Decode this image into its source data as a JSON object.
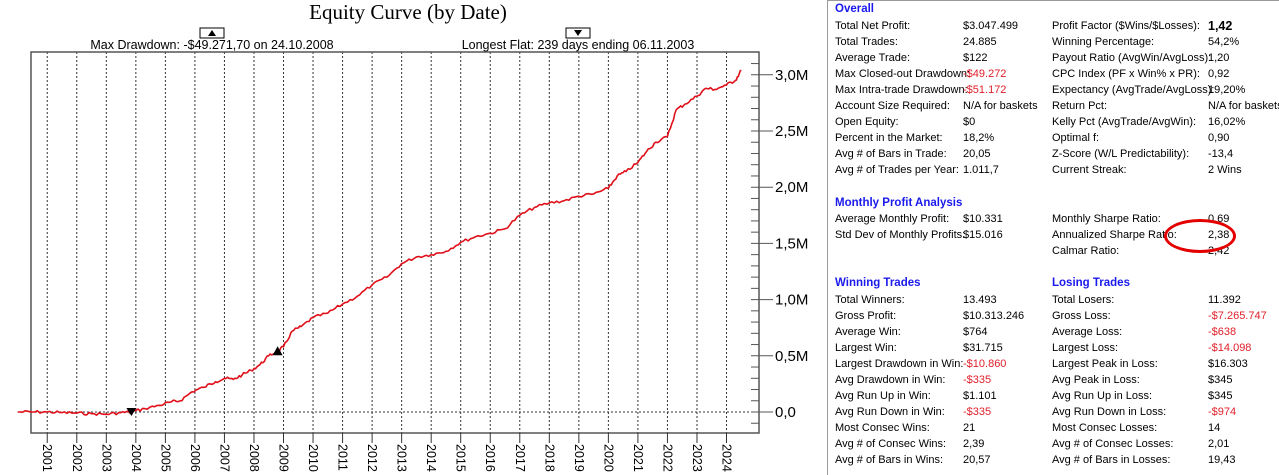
{
  "chart_data": {
    "type": "line",
    "title": "Equity Curve (by Date)",
    "max_drawdown_label": "Max Drawdown: -$49.271,70 on 24.10.2008",
    "longest_flat_label": "Longest Flat: 239 days ending 06.11.2003",
    "xlabel": "",
    "ylabel": "",
    "x_tick_labels": [
      "2001",
      "2002",
      "2003",
      "2004",
      "2005",
      "2006",
      "2007",
      "2008",
      "2009",
      "2010",
      "2011",
      "2012",
      "2013",
      "2014",
      "2015",
      "2016",
      "2017",
      "2018",
      "2019",
      "2020",
      "2021",
      "2022",
      "2023",
      "2024"
    ],
    "y_tick_labels": [
      "0,0",
      "0,5M",
      "1,0M",
      "1,5M",
      "2,0M",
      "2,5M",
      "3,0M"
    ],
    "y_tick_values": [
      0,
      500000,
      1000000,
      1500000,
      2000000,
      2500000,
      3000000
    ],
    "xlim": [
      2000.0,
      2025.0
    ],
    "ylim": [
      -200000,
      3200000
    ],
    "grid": "vertical-dotted",
    "series": [
      {
        "name": "Equity",
        "color": "#e0101a",
        "x": [
          2000.0,
          2000.5,
          2001.0,
          2001.5,
          2002.0,
          2002.5,
          2003.0,
          2003.5,
          2003.85,
          2004.3,
          2004.8,
          2005.2,
          2005.5,
          2005.9,
          2006.3,
          2006.7,
          2007.0,
          2007.3,
          2007.6,
          2007.9,
          2008.2,
          2008.5,
          2008.8,
          2009.0,
          2009.3,
          2009.6,
          2010.0,
          2010.5,
          2011.0,
          2011.5,
          2012.0,
          2012.5,
          2013.0,
          2013.5,
          2014.0,
          2014.5,
          2015.0,
          2015.5,
          2016.0,
          2016.5,
          2017.0,
          2017.5,
          2018.0,
          2018.5,
          2019.0,
          2019.5,
          2020.0,
          2020.3,
          2020.6,
          2021.0,
          2021.3,
          2021.6,
          2022.0,
          2022.3,
          2022.6,
          2023.0,
          2023.3,
          2023.6,
          2024.0,
          2024.3,
          2024.5
        ],
        "y": [
          0,
          0,
          0,
          -5000,
          -10000,
          -15000,
          -20000,
          -5000,
          0,
          30000,
          60000,
          90000,
          100000,
          180000,
          220000,
          270000,
          300000,
          290000,
          330000,
          370000,
          420000,
          500000,
          540000,
          580000,
          720000,
          760000,
          840000,
          880000,
          960000,
          1030000,
          1130000,
          1200000,
          1320000,
          1380000,
          1400000,
          1430000,
          1510000,
          1560000,
          1590000,
          1630000,
          1750000,
          1820000,
          1860000,
          1880000,
          1920000,
          1940000,
          1990000,
          2100000,
          2140000,
          2220000,
          2320000,
          2400000,
          2450000,
          2690000,
          2740000,
          2810000,
          2880000,
          2870000,
          2910000,
          2950000,
          3040000
        ]
      }
    ],
    "markers": [
      {
        "name": "longest-flat-end",
        "shape": "triangle-down",
        "x": 2003.85,
        "y": 0
      },
      {
        "name": "max-drawdown",
        "shape": "triangle-up",
        "x": 2008.8,
        "y": 540000
      }
    ]
  },
  "stats": {
    "overall": {
      "title": "Overall",
      "left": [
        {
          "label": "Total Net Profit:",
          "value": "$3.047.499",
          "neg": false
        },
        {
          "label": "Total Trades:",
          "value": "24.885",
          "neg": false
        },
        {
          "label": "Average Trade:",
          "value": "$122",
          "neg": false
        },
        {
          "label": "Max Closed-out Drawdown:",
          "value": "-$49.272",
          "neg": true
        },
        {
          "label": "Max Intra-trade Drawdown:",
          "value": "-$51.172",
          "neg": true
        },
        {
          "label": "Account Size Required:",
          "value": "N/A for baskets",
          "neg": false
        },
        {
          "label": "Open Equity:",
          "value": "$0",
          "neg": false
        },
        {
          "label": "Percent in the Market:",
          "value": "18,2%",
          "neg": false
        },
        {
          "label": "Avg # of Bars in Trade:",
          "value": "20,05",
          "neg": false
        },
        {
          "label": "Avg # of Trades per Year:",
          "value": "1.011,7",
          "neg": false
        }
      ],
      "right": [
        {
          "label": "Profit Factor ($Wins/$Losses):",
          "value": "1,42",
          "neg": false,
          "bold": true
        },
        {
          "label": "Winning Percentage:",
          "value": "54,2%",
          "neg": false
        },
        {
          "label": "Payout Ratio (AvgWin/AvgLoss):",
          "value": "1,20",
          "neg": false
        },
        {
          "label": "CPC Index (PF x Win% x PR):",
          "value": "0,92",
          "neg": false
        },
        {
          "label": "Expectancy (AvgTrade/AvgLoss):",
          "value": "19,20%",
          "neg": false
        },
        {
          "label": "Return Pct:",
          "value": "N/A for baskets",
          "neg": false
        },
        {
          "label": "Kelly Pct (AvgTrade/AvgWin):",
          "value": "16,02%",
          "neg": false
        },
        {
          "label": "Optimal f:",
          "value": "0,90",
          "neg": false
        },
        {
          "label": "Z-Score (W/L Predictability):",
          "value": "-13,4",
          "neg": false
        },
        {
          "label": "Current Streak:",
          "value": "2 Wins",
          "neg": false
        }
      ]
    },
    "monthly": {
      "title": "Monthly Profit Analysis",
      "left": [
        {
          "label": "Average Monthly Profit:",
          "value": "$10.331"
        },
        {
          "label": "Std Dev of Monthly Profits:",
          "value": "$15.016"
        }
      ],
      "right": [
        {
          "label": "Monthly Sharpe Ratio:",
          "value": "0,69"
        },
        {
          "label": "Annualized Sharpe Ratio:",
          "value": "2,38"
        },
        {
          "label": "Calmar Ratio:",
          "value": "2,42"
        }
      ]
    },
    "winning": {
      "title": "Winning Trades",
      "rows": [
        {
          "label": "Total Winners:",
          "value": "13.493",
          "neg": false
        },
        {
          "label": "Gross Profit:",
          "value": "$10.313.246",
          "neg": false
        },
        {
          "label": "Average Win:",
          "value": "$764",
          "neg": false
        },
        {
          "label": "Largest Win:",
          "value": "$31.715",
          "neg": false
        },
        {
          "label": "Largest Drawdown in Win:",
          "value": "-$10.860",
          "neg": true
        },
        {
          "label": "Avg Drawdown in Win:",
          "value": "-$335",
          "neg": true
        },
        {
          "label": "Avg Run Up in Win:",
          "value": "$1.101",
          "neg": false
        },
        {
          "label": "Avg Run Down in Win:",
          "value": "-$335",
          "neg": true
        },
        {
          "label": "Most Consec Wins:",
          "value": "21",
          "neg": false
        },
        {
          "label": "Avg # of Consec Wins:",
          "value": "2,39",
          "neg": false
        },
        {
          "label": "Avg # of Bars in Wins:",
          "value": "20,57",
          "neg": false
        }
      ]
    },
    "losing": {
      "title": "Losing Trades",
      "rows": [
        {
          "label": "Total Losers:",
          "value": "11.392",
          "neg": false
        },
        {
          "label": "Gross Loss:",
          "value": "-$7.265.747",
          "neg": true
        },
        {
          "label": "Average Loss:",
          "value": "-$638",
          "neg": true
        },
        {
          "label": "Largest Loss:",
          "value": "-$14.098",
          "neg": true
        },
        {
          "label": "Largest Peak in Loss:",
          "value": "$16.303",
          "neg": false
        },
        {
          "label": "Avg Peak in Loss:",
          "value": "$345",
          "neg": false
        },
        {
          "label": "Avg Run Up in Loss:",
          "value": "$345",
          "neg": false
        },
        {
          "label": "Avg Run Down in Loss:",
          "value": "-$974",
          "neg": true
        },
        {
          "label": "Most Consec Losses:",
          "value": "14",
          "neg": false
        },
        {
          "label": "Avg # of Consec Losses:",
          "value": "2,01",
          "neg": false
        },
        {
          "label": "Avg # of Bars in Losses:",
          "value": "19,43",
          "neg": false
        }
      ]
    }
  },
  "colors": {
    "equity_line": "#e0101a",
    "section_title": "#1a1aee",
    "negative_value": "#e0202a",
    "highlight_circle": "#e20000"
  }
}
